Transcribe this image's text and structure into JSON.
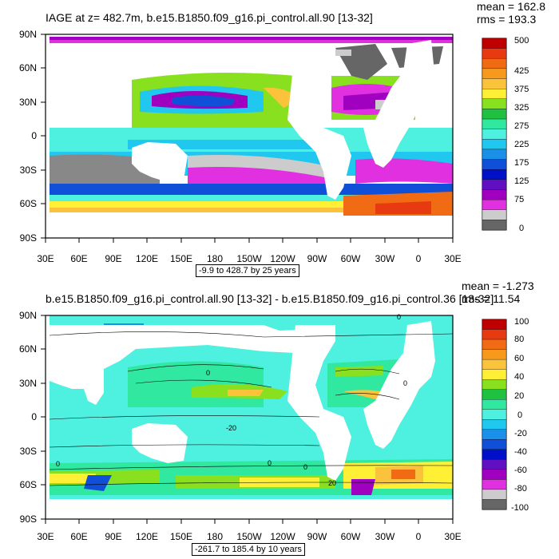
{
  "panels": [
    {
      "title": "IAGE at z= 482.7m, b.e15.B1850.f09_g16.pi_control.all.90 [13-32]",
      "mean_text": "mean = 162.8",
      "rms_text": "rms = 193.3",
      "range_text": "-9.9 to 428.7 by 25 years",
      "lat_labels": [
        "90N",
        "60N",
        "30N",
        "0",
        "30S",
        "60S",
        "90S"
      ],
      "lon_labels": [
        "30E",
        "60E",
        "90E",
        "120E",
        "150E",
        "180",
        "150W",
        "120W",
        "90W",
        "60W",
        "30W",
        "0",
        "30E"
      ],
      "colorbar_labels": [
        "500",
        "425",
        "375",
        "325",
        "275",
        "225",
        "175",
        "125",
        "75",
        "0"
      ],
      "colorbar_colors": [
        "#c00000",
        "#e83a10",
        "#f06b14",
        "#f79a1c",
        "#fbc33b",
        "#fff036",
        "#88e01e",
        "#20c040",
        "#30e8a0",
        "#4ef0e0",
        "#20c8f0",
        "#1b90e8",
        "#1050d8",
        "#0010c8",
        "#6010c0",
        "#a000c0",
        "#e030e0",
        "#cccccc",
        "#666666"
      ]
    },
    {
      "title": "b.e15.B1850.f09_g16.pi_control.all.90 [13-32] - b.e15.B1850.f09_g16.pi_control.36 [13-32]",
      "mean_text": "mean = -1.273",
      "rms_text": "rms = 11.54",
      "range_text": "-261.7 to 185.4 by 10 years",
      "lat_labels": [
        "90N",
        "60N",
        "30N",
        "0",
        "30S",
        "60S",
        "90S"
      ],
      "lon_labels": [
        "30E",
        "60E",
        "90E",
        "120E",
        "150E",
        "180",
        "150W",
        "120W",
        "90W",
        "60W",
        "30W",
        "0",
        "30E"
      ],
      "colorbar_labels": [
        "100",
        "80",
        "60",
        "40",
        "20",
        "0",
        "-20",
        "-40",
        "-60",
        "-80",
        "-100"
      ],
      "colorbar_colors": [
        "#c00000",
        "#e83a10",
        "#f06b14",
        "#f79a1c",
        "#fbc33b",
        "#fff036",
        "#88e01e",
        "#20c040",
        "#30e8a0",
        "#4ef0e0",
        "#20c8f0",
        "#1b90e8",
        "#1050d8",
        "#0010c8",
        "#6010c0",
        "#a000c0",
        "#e030e0",
        "#cccccc",
        "#666666"
      ],
      "contour_labels": [
        "0",
        "0",
        "-20",
        "0",
        "0",
        "20",
        "0",
        "0"
      ]
    }
  ]
}
